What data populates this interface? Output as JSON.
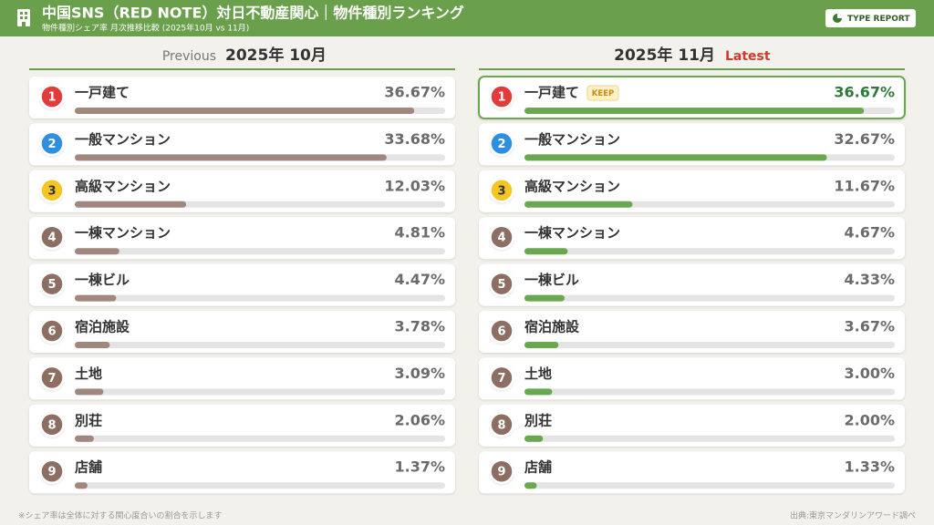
{
  "header": {
    "title": "中国SNS（RED NOTE）対日不動産関心｜物件種別ランキング",
    "subtitle": "物件種別シェア率 月次推移比較 (2025年10月 vs 11月)",
    "button": "TYPE REPORT"
  },
  "rank_colors": [
    "#e23b3b",
    "#2f8fdf",
    "#f3c623",
    "#8c6e63",
    "#8c6e63",
    "#8c6e63",
    "#8c6e63",
    "#8c6e63",
    "#8c6e63"
  ],
  "chart_data": [
    {
      "type": "bar",
      "label": "Previous",
      "title": "2025年 10月",
      "color": "#a1887f",
      "xlim": [
        0,
        40
      ],
      "ranks": [
        1,
        2,
        3,
        4,
        5,
        6,
        7,
        8,
        9
      ],
      "categories": [
        "一戸建て",
        "一般マンション",
        "高級マンション",
        "一棟マンション",
        "一棟ビル",
        "宿泊施設",
        "土地",
        "別荘",
        "店舗"
      ],
      "values": [
        36.67,
        33.68,
        12.03,
        4.81,
        4.47,
        3.78,
        3.09,
        2.06,
        1.37
      ],
      "value_labels": [
        "36.67%",
        "33.68%",
        "12.03%",
        "4.81%",
        "4.47%",
        "3.78%",
        "3.09%",
        "2.06%",
        "1.37%"
      ]
    },
    {
      "type": "bar",
      "label": "Latest",
      "title": "2025年 11月",
      "color": "#6aa84f",
      "xlim": [
        0,
        40
      ],
      "ranks": [
        1,
        2,
        3,
        4,
        5,
        6,
        7,
        8,
        9
      ],
      "categories": [
        "一戸建て",
        "一般マンション",
        "高級マンション",
        "一棟マンション",
        "一棟ビル",
        "宿泊施設",
        "土地",
        "別荘",
        "店舗"
      ],
      "values": [
        36.67,
        32.67,
        11.67,
        4.67,
        4.33,
        3.67,
        3.0,
        2.0,
        1.33
      ],
      "value_labels": [
        "36.67%",
        "32.67%",
        "11.67%",
        "4.67%",
        "4.33%",
        "3.67%",
        "3.00%",
        "2.00%",
        "1.33%"
      ],
      "badges": [
        "KEEP",
        null,
        null,
        null,
        null,
        null,
        null,
        null,
        null
      ]
    }
  ],
  "footer": {
    "note": "※シェア率は全体に対する関心度合いの割合を示します",
    "source": "出典:東京マンダリンアワード調べ"
  }
}
